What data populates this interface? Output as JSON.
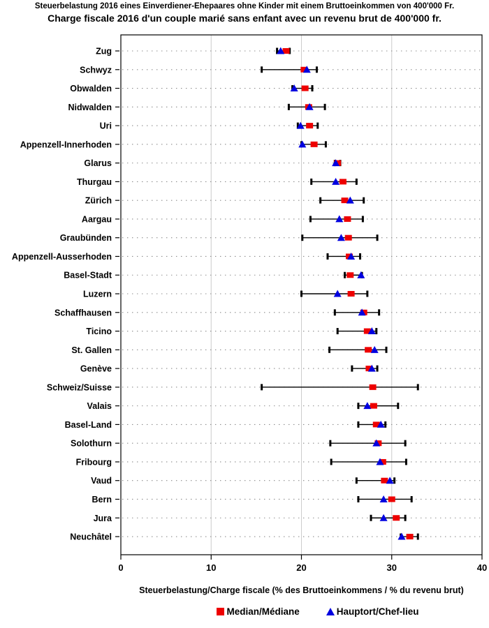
{
  "chart": {
    "title_de": "Steuerbelastung 2016 eines Einverdiener-Ehepaares ohne Kinder mit einem Bruttoeinkommen von 400'000 Fr.",
    "title_fr": "Charge fiscale 2016 d'un couple marié sans enfant avec un revenu brut de 400'000 fr.",
    "xlabel": "Steuerbelastung/Charge fiscale (% des Bruttoeinkommens / % du revenu brut)",
    "legend_median": "Median/Médiane",
    "legend_hauptort": "Hauptort/Chef-lieu",
    "colors": {
      "median": "#ee0000",
      "hauptort": "#0000e0",
      "gridline": "#cccccc",
      "row_guide": "#888888",
      "frame": "#000000"
    }
  },
  "chart_data": {
    "type": "scatter",
    "subtype": "horizontal-dot-range-plot",
    "title": "Steuerbelastung 2016 eines Einverdiener-Ehepaares ohne Kinder mit einem Bruttoeinkommen von 400'000 Fr. / Charge fiscale 2016 d'un couple marié sans enfant avec un revenu brut de 400'000 fr.",
    "xlabel": "Steuerbelastung/Charge fiscale (% des Bruttoeinkommens / % du revenu brut)",
    "xlim": [
      0,
      40
    ],
    "x_ticks": [
      0,
      10,
      20,
      30,
      40
    ],
    "gridlines_at": [
      10,
      20,
      30
    ],
    "grid": "vertical light-gray gridlines plus dotted horizontal row guides",
    "legend_position": "bottom",
    "categories": [
      "Zug",
      "Schwyz",
      "Obwalden",
      "Nidwalden",
      "Uri",
      "Appenzell-Innerhoden",
      "Glarus",
      "Thurgau",
      "Zürich",
      "Aargau",
      "Graubünden",
      "Appenzell-Ausserhoden",
      "Basel-Stadt",
      "Luzern",
      "Schaffhausen",
      "Ticino",
      "St. Gallen",
      "Genève",
      "Schweiz/Suisse",
      "Valais",
      "Basel-Land",
      "Solothurn",
      "Fribourg",
      "Vaud",
      "Bern",
      "Jura",
      "Neuchâtel"
    ],
    "ranges_min_max": [
      [
        17.3,
        18.7
      ],
      [
        15.6,
        21.7
      ],
      [
        19.0,
        21.2
      ],
      [
        18.6,
        22.6
      ],
      [
        19.6,
        21.8
      ],
      [
        20.0,
        22.7
      ],
      [
        23.7,
        24.3
      ],
      [
        21.1,
        26.1
      ],
      [
        22.1,
        26.9
      ],
      [
        21.0,
        26.8
      ],
      [
        20.1,
        28.4
      ],
      [
        22.9,
        26.5
      ],
      [
        24.8,
        26.7
      ],
      [
        20.0,
        27.3
      ],
      [
        23.7,
        28.6
      ],
      [
        24.0,
        28.3
      ],
      [
        23.1,
        29.4
      ],
      [
        25.6,
        28.4
      ],
      [
        15.6,
        32.9
      ],
      [
        26.3,
        30.7
      ],
      [
        26.3,
        29.3
      ],
      [
        23.2,
        31.5
      ],
      [
        23.3,
        31.6
      ],
      [
        26.1,
        30.3
      ],
      [
        26.3,
        32.2
      ],
      [
        27.7,
        31.5
      ],
      [
        31.0,
        32.9
      ]
    ],
    "series": [
      {
        "name": "Median/Médiane",
        "marker": "square",
        "color": "#ee0000",
        "values": [
          18.3,
          20.3,
          20.4,
          20.8,
          20.9,
          21.4,
          24.0,
          24.6,
          24.8,
          25.1,
          25.2,
          25.3,
          25.4,
          25.5,
          26.9,
          27.3,
          27.4,
          27.5,
          27.9,
          28.0,
          28.3,
          28.5,
          29.0,
          29.2,
          30.0,
          30.5,
          32.0
        ]
      },
      {
        "name": "Hauptort/Chef-lieu",
        "marker": "triangle",
        "color": "#0000e0",
        "values": [
          17.7,
          20.6,
          19.2,
          20.9,
          19.9,
          20.1,
          23.8,
          23.8,
          25.4,
          24.2,
          24.4,
          25.5,
          26.6,
          24.0,
          26.7,
          27.8,
          28.1,
          27.8,
          null,
          27.3,
          28.8,
          28.3,
          28.7,
          29.8,
          29.1,
          29.1,
          31.1
        ]
      }
    ]
  }
}
